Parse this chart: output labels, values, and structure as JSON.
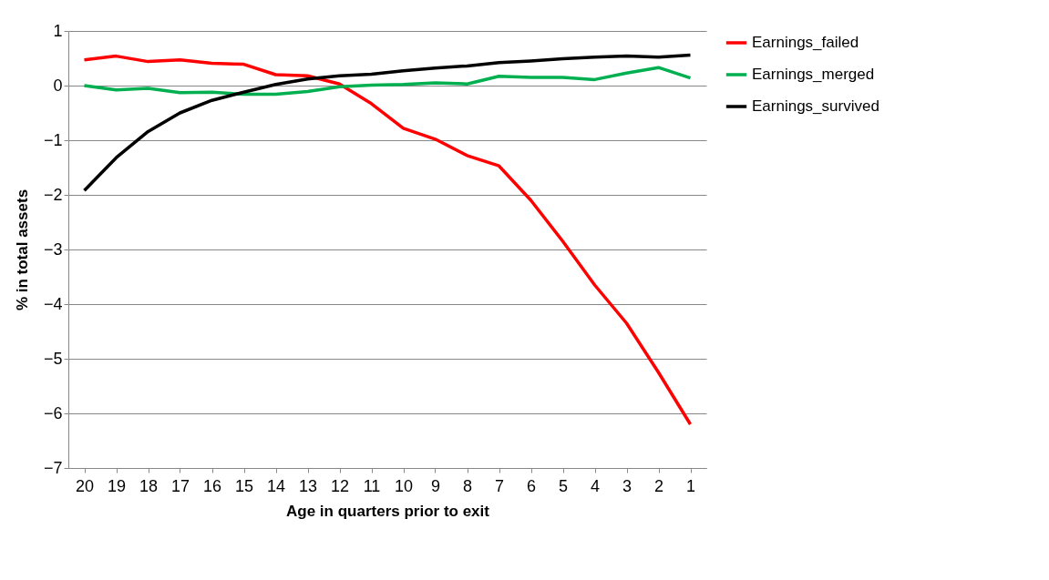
{
  "chart_data": {
    "type": "line",
    "xlabel": "Age in quarters prior to exit",
    "ylabel": "% in total assets",
    "categories": [
      "20",
      "19",
      "18",
      "17",
      "16",
      "15",
      "14",
      "13",
      "12",
      "11",
      "10",
      "9",
      "8",
      "7",
      "6",
      "5",
      "4",
      "3",
      "2",
      "1"
    ],
    "series": [
      {
        "name": "Earnings_failed",
        "color": "#ff0000",
        "values": [
          0.47,
          0.54,
          0.44,
          0.47,
          0.41,
          0.39,
          0.2,
          0.18,
          0.03,
          -0.33,
          -0.78,
          -0.98,
          -1.28,
          -1.47,
          -2.1,
          -2.85,
          -3.65,
          -4.35,
          -5.25,
          -6.2
        ]
      },
      {
        "name": "Earnings_merged",
        "color": "#00b050",
        "values": [
          0.0,
          -0.08,
          -0.05,
          -0.13,
          -0.12,
          -0.16,
          -0.16,
          -0.11,
          -0.02,
          0.01,
          0.02,
          0.05,
          0.03,
          0.17,
          0.15,
          0.15,
          0.11,
          0.23,
          0.33,
          0.14
        ]
      },
      {
        "name": "Earnings_survived",
        "color": "#000000",
        "values": [
          -1.92,
          -1.32,
          -0.84,
          -0.5,
          -0.27,
          -0.12,
          0.02,
          0.12,
          0.18,
          0.21,
          0.27,
          0.32,
          0.36,
          0.42,
          0.45,
          0.49,
          0.52,
          0.54,
          0.52,
          0.56
        ]
      }
    ],
    "ylim": [
      -7,
      1
    ],
    "yticks": [
      -7,
      -6,
      -5,
      -4,
      -3,
      -2,
      -1,
      0,
      1
    ],
    "grid": "y",
    "legend": "right",
    "marker": "none",
    "line_style": "solid"
  }
}
